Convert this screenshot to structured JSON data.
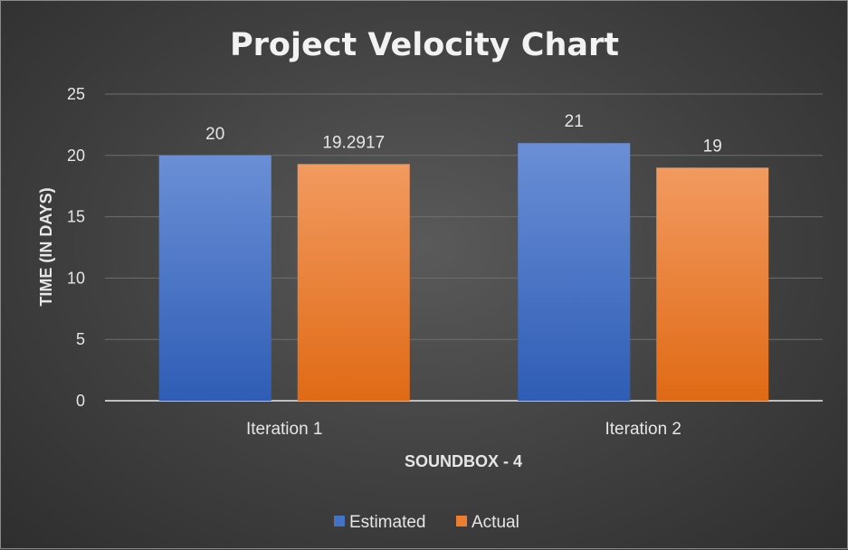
{
  "chart_data": {
    "type": "bar",
    "title": "Project Velocity Chart",
    "xlabel": "SOUNDBOX - 4",
    "ylabel": "TIME (IN DAYS)",
    "categories": [
      "Iteration 1",
      "Iteration 2"
    ],
    "series": [
      {
        "name": "Estimated",
        "values": [
          20,
          21
        ],
        "labels": [
          "20",
          "21"
        ],
        "color": "#4472c4"
      },
      {
        "name": "Actual",
        "values": [
          19.2917,
          19
        ],
        "labels": [
          "19.2917",
          "19"
        ],
        "color": "#ed7d31"
      }
    ],
    "ylim": [
      0,
      25
    ],
    "yticks": [
      0,
      5,
      10,
      15,
      20,
      25
    ],
    "grid": true,
    "legend": "bottom"
  }
}
